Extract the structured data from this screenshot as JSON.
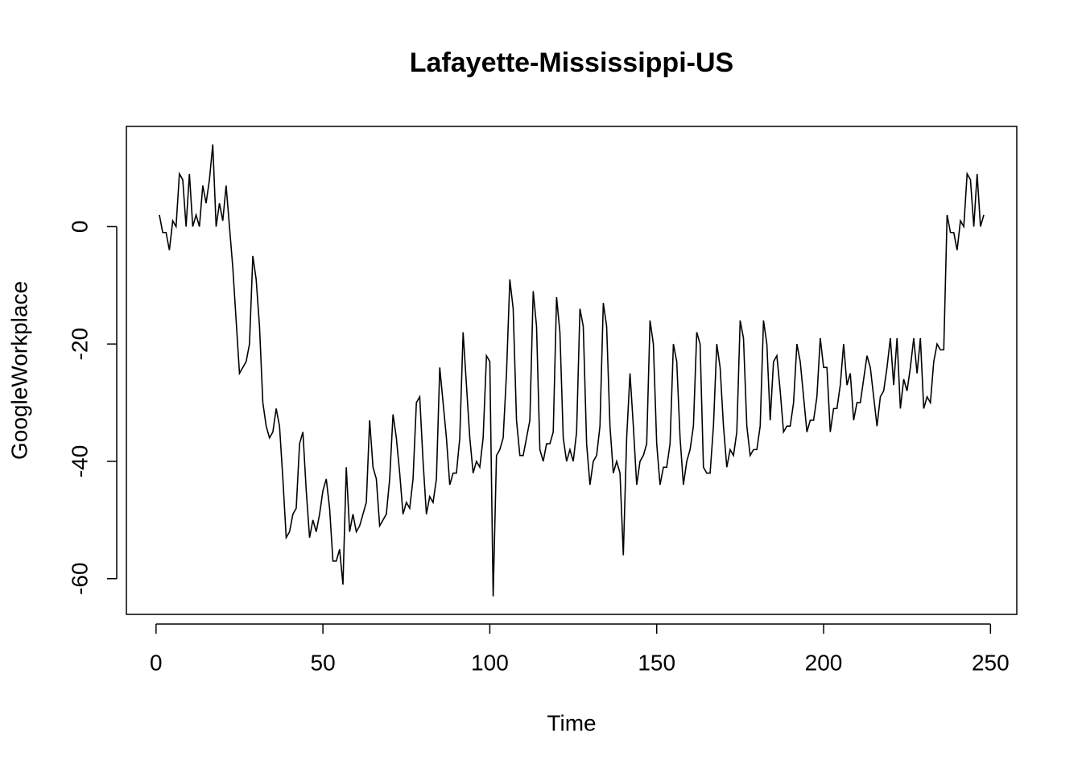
{
  "chart_data": {
    "type": "line",
    "title": "Lafayette-Mississippi-US",
    "xlabel": "Time",
    "ylabel": "GoogleWorkplace",
    "color": "#000000",
    "x": [
      1,
      2,
      3,
      4,
      5,
      6,
      7,
      8,
      9,
      10,
      11,
      12,
      13,
      14,
      15,
      16,
      17,
      18,
      19,
      20,
      21,
      22,
      23,
      24,
      25,
      26,
      27,
      28,
      29,
      30,
      31,
      32,
      33,
      34,
      35,
      36,
      37,
      38,
      39,
      40,
      41,
      42,
      43,
      44,
      45,
      46,
      47,
      48,
      49,
      50,
      51,
      52,
      53,
      54,
      55,
      56,
      57,
      58,
      59,
      60,
      61,
      62,
      63,
      64,
      65,
      66,
      67,
      68,
      69,
      70,
      71,
      72,
      73,
      74,
      75,
      76,
      77,
      78,
      79,
      80,
      81,
      82,
      83,
      84,
      85,
      86,
      87,
      88,
      89,
      90,
      91,
      92,
      93,
      94,
      95,
      96,
      97,
      98,
      99,
      100,
      101,
      102,
      103,
      104,
      105,
      106,
      107,
      108,
      109,
      110,
      111,
      112,
      113,
      114,
      115,
      116,
      117,
      118,
      119,
      120,
      121,
      122,
      123,
      124,
      125,
      126,
      127,
      128,
      129,
      130,
      131,
      132,
      133,
      134,
      135,
      136,
      137,
      138,
      139,
      140,
      141,
      142,
      143,
      144,
      145,
      146,
      147,
      148,
      149,
      150,
      151,
      152,
      153,
      154,
      155,
      156,
      157,
      158,
      159,
      160,
      161,
      162,
      163,
      164,
      165,
      166,
      167,
      168,
      169,
      170,
      171,
      172,
      173,
      174,
      175,
      176,
      177,
      178,
      179,
      180,
      181,
      182,
      183,
      184,
      185,
      186,
      187,
      188,
      189,
      190,
      191,
      192,
      193,
      194,
      195,
      196,
      197,
      198,
      199,
      200,
      201,
      202,
      203,
      204,
      205,
      206,
      207,
      208,
      209,
      210,
      211,
      212,
      213,
      214,
      215,
      216,
      217,
      218,
      219,
      220,
      221,
      222,
      223,
      224,
      225,
      226,
      227,
      228,
      229,
      230,
      231,
      232,
      233,
      234,
      235,
      236,
      237,
      238,
      239,
      240,
      241,
      242,
      243,
      244,
      245,
      246,
      247,
      248
    ],
    "values": [
      2,
      -1,
      -1,
      -4,
      1,
      0,
      9,
      8,
      0,
      9,
      0,
      2,
      0,
      7,
      4,
      8,
      14,
      0,
      4,
      1,
      7,
      0,
      -7,
      -16,
      -25,
      -24,
      -23,
      -20,
      -5,
      -9,
      -17,
      -30,
      -34,
      -36,
      -35,
      -31,
      -34,
      -43,
      -53,
      -52,
      -49,
      -48,
      -37,
      -35,
      -45,
      -53,
      -50,
      -52,
      -49,
      -45,
      -43,
      -48,
      -57,
      -57,
      -55,
      -61,
      -41,
      -52,
      -49,
      -52,
      -51,
      -49,
      -47,
      -33,
      -41,
      -43,
      -51,
      -50,
      -49,
      -43,
      -32,
      -36,
      -42,
      -49,
      -47,
      -48,
      -43,
      -30,
      -29,
      -40,
      -49,
      -46,
      -47,
      -43,
      -24,
      -30,
      -36,
      -44,
      -42,
      -42,
      -36,
      -18,
      -27,
      -36,
      -42,
      -40,
      -41,
      -36,
      -22,
      -23,
      -63,
      -39,
      -38,
      -36,
      -25,
      -9,
      -14,
      -33,
      -39,
      -39,
      -36,
      -33,
      -11,
      -17,
      -38,
      -40,
      -37,
      -37,
      -35,
      -12,
      -18,
      -36,
      -40,
      -38,
      -40,
      -35,
      -14,
      -17,
      -37,
      -44,
      -40,
      -39,
      -34,
      -13,
      -17,
      -34,
      -42,
      -40,
      -42,
      -56,
      -36,
      -25,
      -34,
      -44,
      -40,
      -39,
      -37,
      -16,
      -20,
      -37,
      -44,
      -41,
      -41,
      -37,
      -20,
      -23,
      -36,
      -44,
      -40,
      -38,
      -34,
      -18,
      -20,
      -41,
      -42,
      -42,
      -34,
      -20,
      -24,
      -34,
      -41,
      -38,
      -39,
      -35,
      -16,
      -19,
      -34,
      -39,
      -38,
      -38,
      -34,
      -16,
      -20,
      -33,
      -23,
      -22,
      -28,
      -35,
      -34,
      -34,
      -30,
      -20,
      -23,
      -29,
      -35,
      -33,
      -33,
      -29,
      -19,
      -24,
      -24,
      -35,
      -31,
      -31,
      -27,
      -20,
      -27,
      -25,
      -33,
      -30,
      -30,
      -26,
      -22,
      -24,
      -29,
      -34,
      -29,
      -28,
      -24,
      -19,
      -27,
      -19,
      -31,
      -26,
      -28,
      -24,
      -19,
      -25,
      -19,
      -31,
      -29,
      -30,
      -23,
      -20,
      -21,
      -21,
      2,
      -1,
      -1,
      -4,
      1,
      0,
      9,
      8,
      0,
      9,
      0,
      2
    ],
    "xlim": [
      -8.88,
      257.88
    ],
    "xticks": [
      0,
      50,
      100,
      150,
      200,
      250
    ],
    "ylim": [
      -66.08,
      17.08
    ],
    "yticks": [
      -60,
      -40,
      -20,
      0
    ]
  }
}
